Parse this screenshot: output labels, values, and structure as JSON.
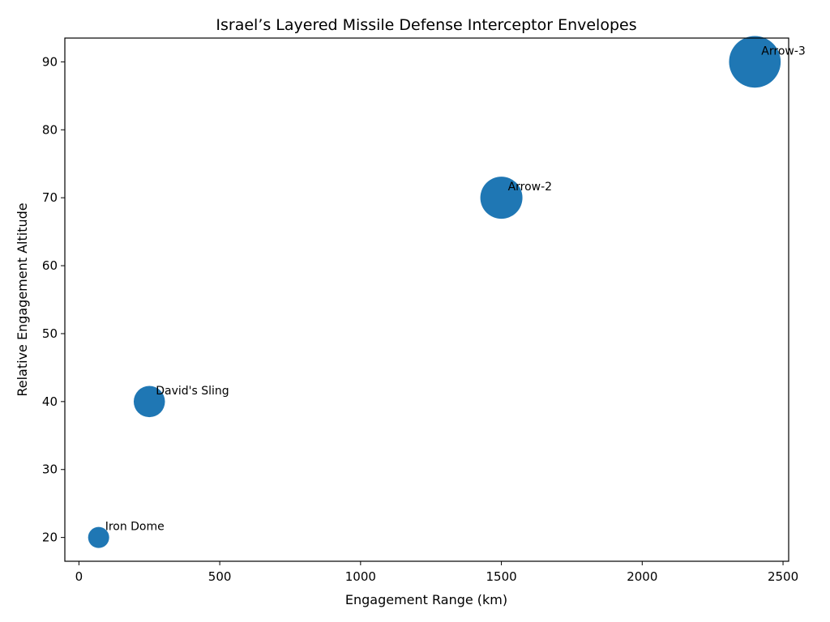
{
  "chart_data": {
    "type": "scatter",
    "title": "Israel’s Layered Missile Defense Interceptor Envelopes",
    "xlabel": "Engagement Range (km)",
    "ylabel": "Relative Engagement Altitude",
    "xlim": [
      -50,
      2520
    ],
    "ylim": [
      16.5,
      93.5
    ],
    "xticks": [
      0,
      500,
      1000,
      1500,
      2000,
      2500
    ],
    "yticks": [
      20,
      30,
      40,
      50,
      60,
      70,
      80,
      90
    ],
    "grid": false,
    "legend": "none",
    "marker_color": "#1f77b4",
    "points": [
      {
        "label": "Iron Dome",
        "x": 70,
        "y": 20,
        "size": 1
      },
      {
        "label": "David's Sling",
        "x": 250,
        "y": 40,
        "size": 2.2
      },
      {
        "label": "Arrow-2",
        "x": 1500,
        "y": 70,
        "size": 4
      },
      {
        "label": "Arrow-3",
        "x": 2400,
        "y": 90,
        "size": 6
      }
    ]
  }
}
